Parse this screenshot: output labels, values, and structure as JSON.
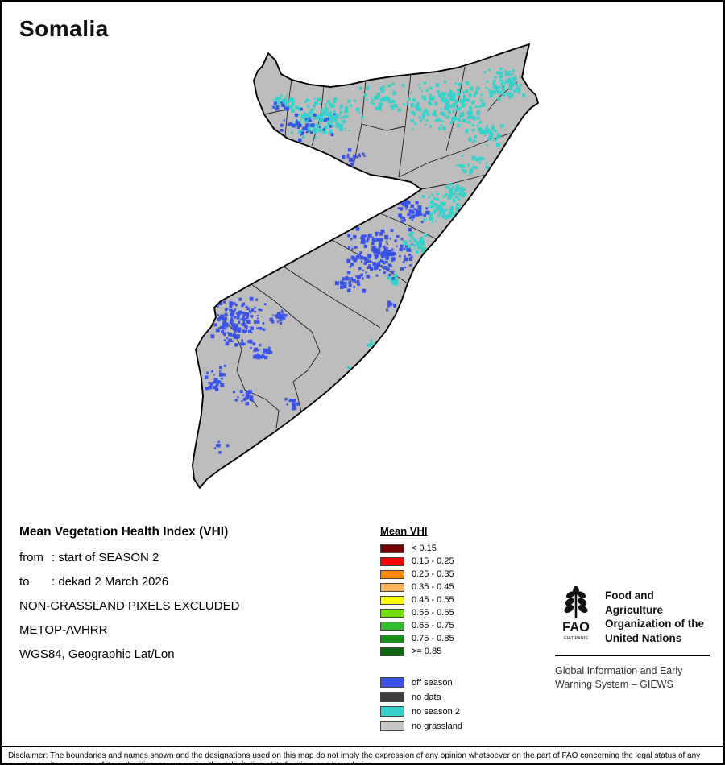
{
  "header": {
    "title": "Somalia"
  },
  "info": {
    "heading": "Mean Vegetation Health Index (VHI)",
    "from_label": "from",
    "from_value": ": start of SEASON 2",
    "to_label": "to",
    "to_value": ": dekad 2 March 2026",
    "line3": "NON-GRASSLAND PIXELS EXCLUDED",
    "line4": "METOP-AVHRR",
    "line5": "WGS84, Geographic Lat/Lon"
  },
  "legend": {
    "title": "Mean VHI",
    "classes": [
      {
        "label": "< 0.15",
        "color": "#720000"
      },
      {
        "label": "0.15 - 0.25",
        "color": "#FF0000"
      },
      {
        "label": "0.25 - 0.35",
        "color": "#FF8A00"
      },
      {
        "label": "0.35 - 0.45",
        "color": "#FFB45A"
      },
      {
        "label": "0.45 - 0.55",
        "color": "#FFFF00"
      },
      {
        "label": "0.55 - 0.65",
        "color": "#77DD00"
      },
      {
        "label": "0.65 - 0.75",
        "color": "#33BB33"
      },
      {
        "label": "0.75 - 0.85",
        "color": "#1F8E1F"
      },
      {
        "label": ">= 0.85",
        "color": "#116611"
      }
    ],
    "extra": [
      {
        "label": "off season",
        "color": "#3A53E8"
      },
      {
        "label": "no data",
        "color": "#3C3C3C"
      },
      {
        "label": "no season 2",
        "color": "#35D1CB"
      },
      {
        "label": "no grassland",
        "color": "#C8C8C8"
      }
    ]
  },
  "org": {
    "logo_acronym": "FAO",
    "logo_motto": "FIAT PANIS",
    "name_line1": "Food and Agriculture",
    "name_line2": "Organization of the",
    "name_line3": "United Nations",
    "giews_line1": "Global Information and Early",
    "giews_line2": "Warning System – GIEWS"
  },
  "map": {
    "land_color": "#BDBDBD",
    "outline_color": "#000000",
    "region_border_color": "#1C1C1C",
    "off_season_color": "#3A53E8",
    "no_season2_color": "#35D1CB"
  },
  "disclaimer": "Disclaimer: The boundaries and names shown and the designations used on this map do not imply the expression of any opinion whatsoever on the part of FAO concerning the legal status of any country, territory, area or of its authorities, or concerning the delimitation of its frontiers and boundaries."
}
